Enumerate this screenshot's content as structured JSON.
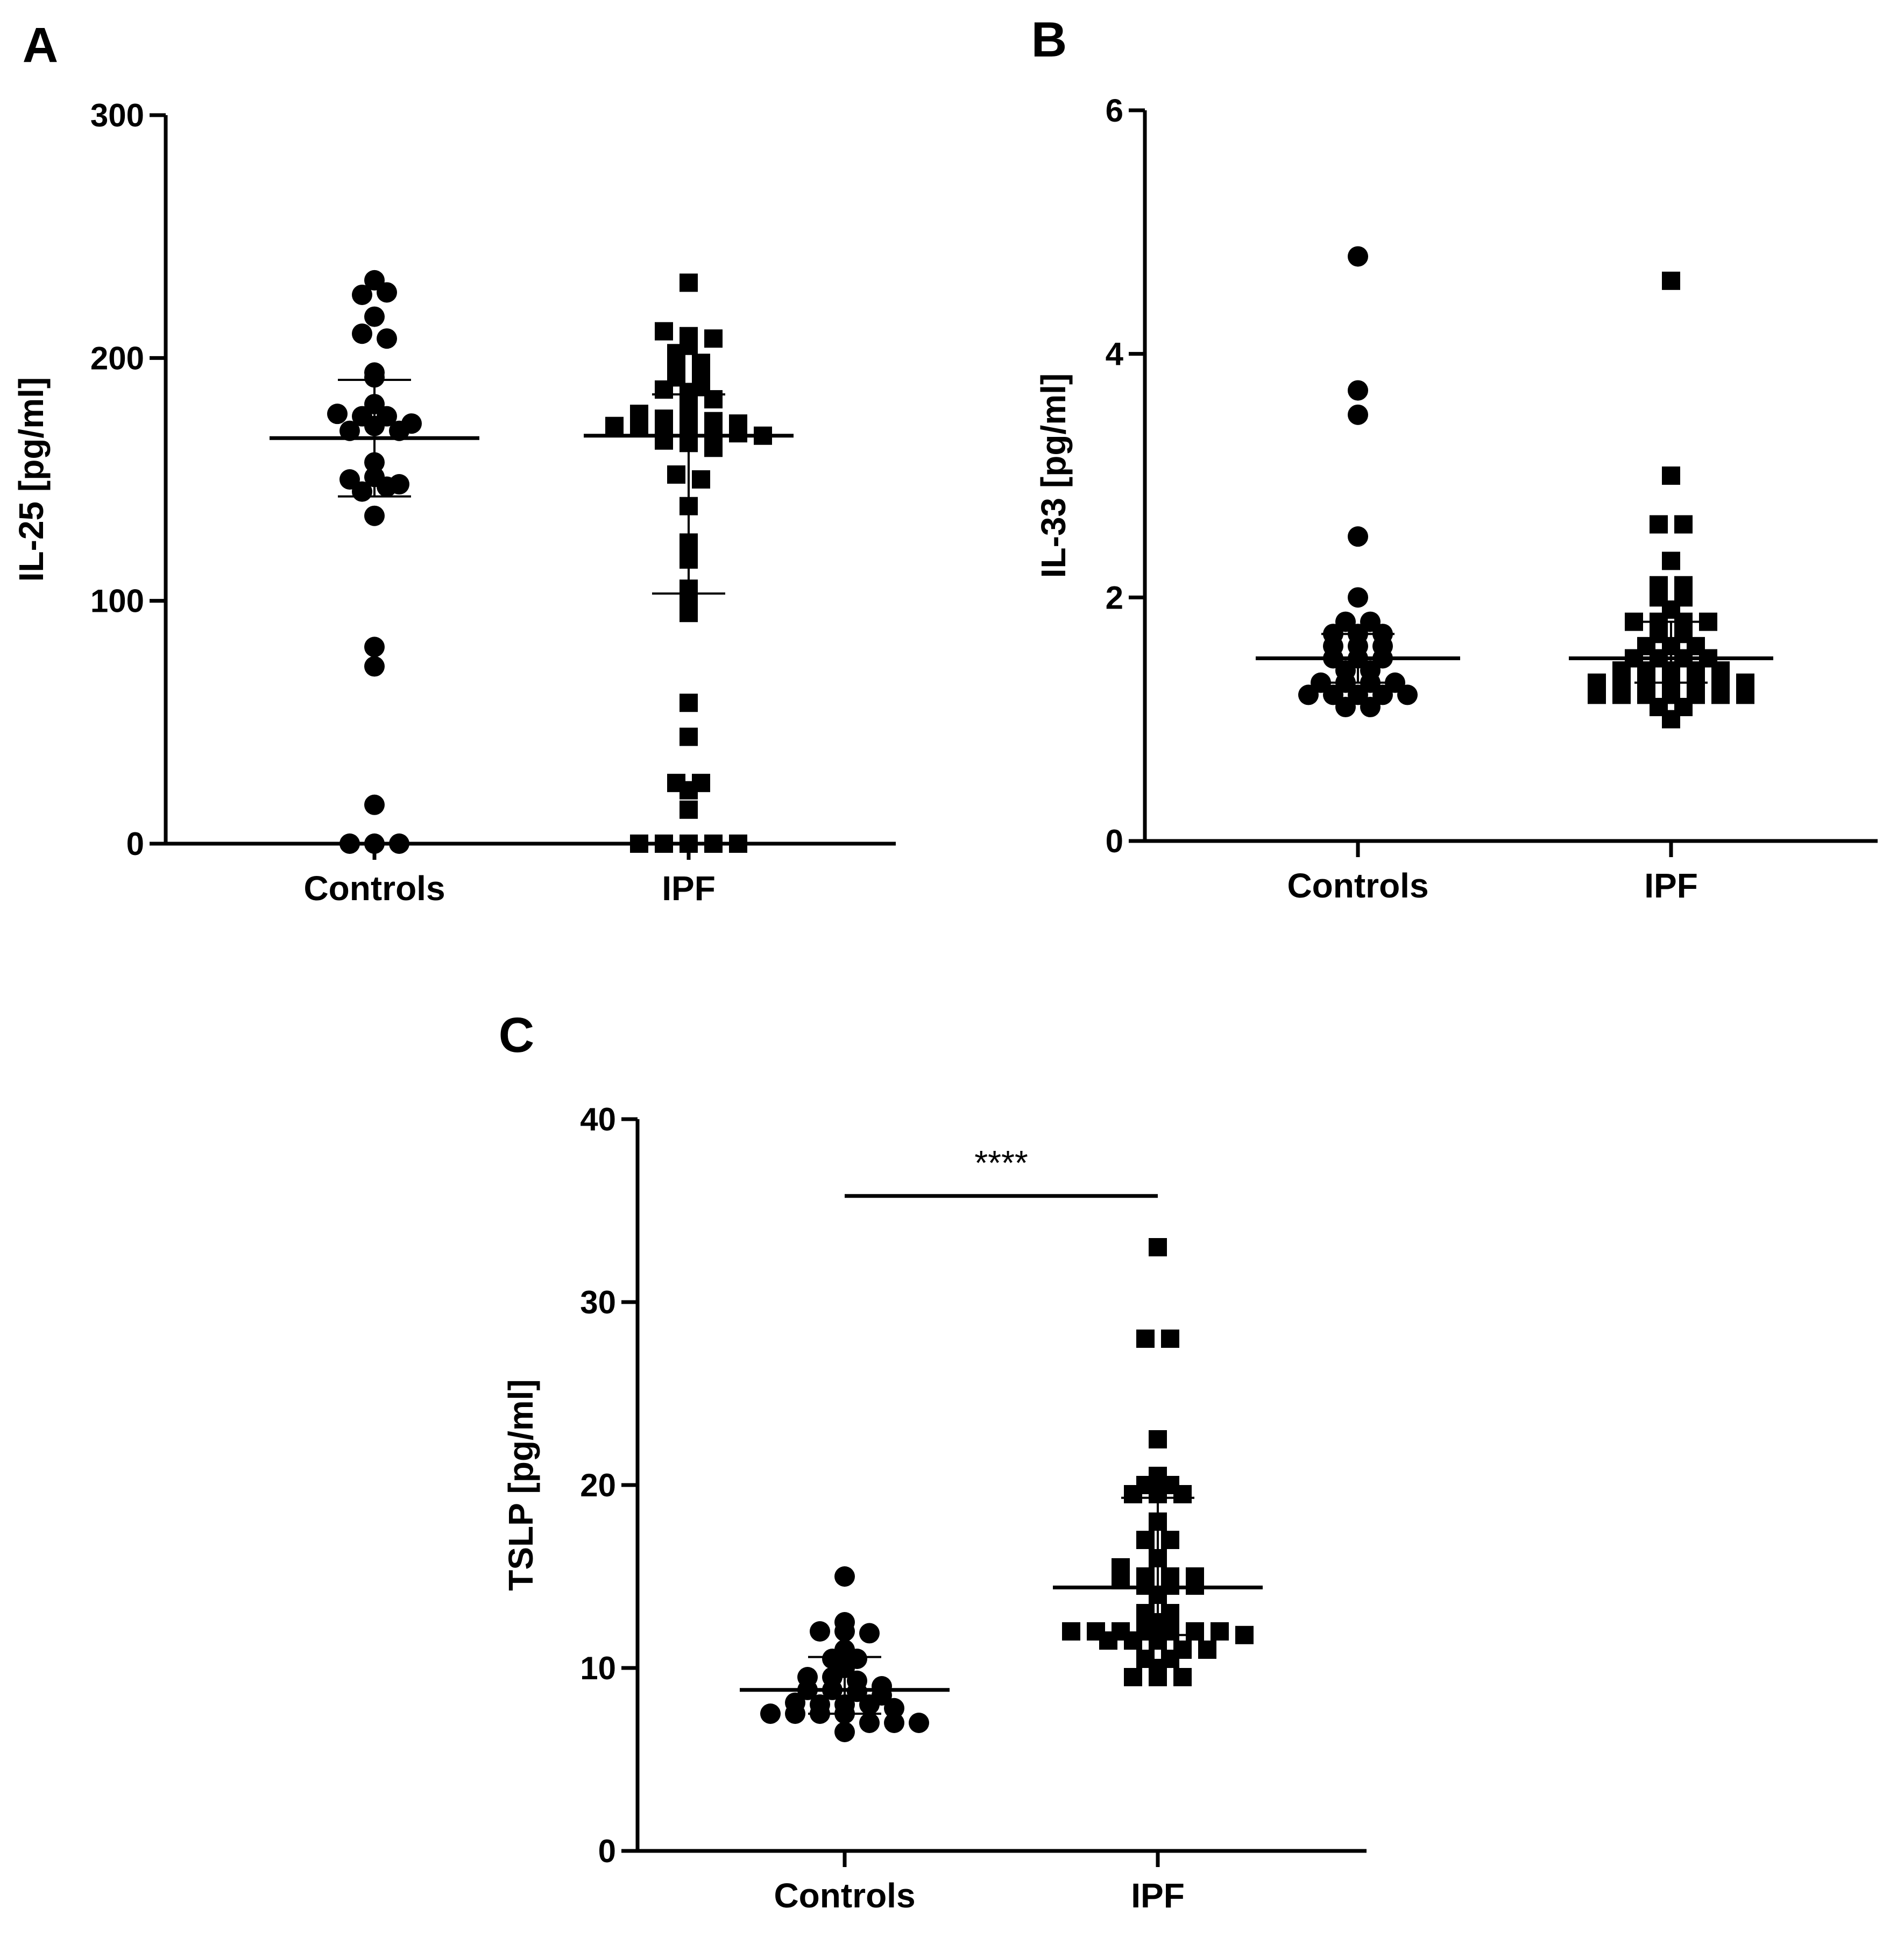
{
  "colors": {
    "ink": "#000000",
    "background": "#ffffff"
  },
  "chart_data": [
    {
      "panel": "A",
      "type": "scatter",
      "ylabel": "IL-25 [pg/ml]",
      "ylim": [
        0,
        300
      ],
      "yticks": [
        "0",
        "100",
        "200",
        "300"
      ],
      "categories": [
        "Controls",
        "IPF"
      ],
      "groups": [
        {
          "name": "Controls",
          "marker": "circle",
          "values": [
            232,
            226,
            227,
            210,
            217,
            208,
            192,
            194,
            181,
            177,
            176,
            176,
            170,
            172,
            170,
            173,
            157,
            150,
            151,
            148,
            145,
            147,
            135,
            81,
            73,
            16,
            0,
            0,
            0
          ],
          "mean": 167,
          "sd_low": 143,
          "sd_high": 191
        },
        {
          "name": "IPF",
          "marker": "square",
          "values": [
            231,
            211,
            209,
            208,
            205,
            202,
            198,
            195,
            193,
            192,
            188,
            187,
            186,
            183,
            180,
            177,
            175,
            174,
            174,
            173,
            172,
            172,
            171,
            170,
            170,
            169,
            168,
            166,
            165,
            163,
            152,
            150,
            139,
            124,
            119,
            117,
            105,
            100,
            95,
            58,
            44,
            25,
            25,
            22,
            14,
            0,
            0,
            0,
            0,
            0
          ],
          "mean": 168,
          "sd_low": 103,
          "sd_high": 185
        }
      ]
    },
    {
      "panel": "B",
      "type": "scatter",
      "ylabel": "IL-33 [pg/ml]",
      "ylim": [
        0,
        6
      ],
      "yticks": [
        "0",
        "2",
        "4",
        "6"
      ],
      "categories": [
        "Controls",
        "IPF"
      ],
      "groups": [
        {
          "name": "Controls",
          "marker": "circle",
          "values": [
            4.8,
            3.7,
            3.5,
            2.5,
            2.0,
            1.8,
            1.8,
            1.7,
            1.7,
            1.7,
            1.6,
            1.6,
            1.6,
            1.5,
            1.5,
            1.5,
            1.4,
            1.4,
            1.3,
            1.3,
            1.3,
            1.3,
            1.2,
            1.2,
            1.2,
            1.2,
            1.2,
            1.1,
            1.1
          ],
          "mean": 1.5,
          "sd_low": 1.3,
          "sd_high": 1.7
        },
        {
          "name": "IPF",
          "marker": "square",
          "values": [
            4.6,
            3.0,
            2.6,
            2.6,
            2.3,
            2.1,
            2.1,
            2.0,
            2.0,
            1.9,
            1.8,
            1.8,
            1.8,
            1.8,
            1.7,
            1.7,
            1.6,
            1.6,
            1.6,
            1.5,
            1.5,
            1.5,
            1.5,
            1.4,
            1.4,
            1.4,
            1.4,
            1.4,
            1.3,
            1.3,
            1.3,
            1.3,
            1.3,
            1.3,
            1.3,
            1.2,
            1.2,
            1.2,
            1.2,
            1.2,
            1.2,
            1.2,
            1.1,
            1.1,
            1.0
          ],
          "mean": 1.5,
          "sd_low": 1.3,
          "sd_high": 1.8
        }
      ]
    },
    {
      "panel": "C",
      "type": "scatter",
      "ylabel": "TSLP [pg/ml]",
      "ylim": [
        0,
        40
      ],
      "yticks": [
        "0",
        "10",
        "20",
        "30",
        "40"
      ],
      "categories": [
        "Controls",
        "IPF"
      ],
      "significance": {
        "label": "****",
        "y": 35.8
      },
      "groups": [
        {
          "name": "Controls",
          "marker": "circle",
          "values": [
            15.0,
            12.5,
            12.0,
            12.0,
            11.9,
            11.0,
            10.5,
            10.5,
            10.0,
            9.5,
            9.5,
            9.3,
            9.0,
            8.8,
            8.8,
            8.7,
            8.5,
            8.1,
            8.0,
            8.0,
            8.0,
            7.8,
            7.5,
            7.5,
            7.5,
            7.5,
            7.0,
            7.0,
            7.0,
            6.5
          ],
          "mean": 8.8,
          "sd_low": 7.5,
          "sd_high": 10.6
        },
        {
          "name": "IPF",
          "marker": "square",
          "values": [
            33.0,
            28.0,
            28.0,
            22.5,
            20.5,
            20.0,
            20.0,
            19.5,
            19.5,
            19.5,
            18.0,
            17.0,
            17.0,
            16.0,
            15.5,
            15.0,
            15.0,
            15.0,
            14.8,
            14.5,
            14.5,
            14.5,
            14.0,
            13.0,
            13.0,
            12.5,
            12.0,
            12.0,
            12.0,
            12.0,
            12.0,
            12.0,
            12.0,
            11.8,
            11.5,
            11.5,
            11.5,
            11.0,
            11.0,
            10.5,
            10.5,
            10.0,
            9.5,
            9.5,
            9.5
          ],
          "mean": 14.4,
          "sd_low": 11.8,
          "sd_high": 19.3
        }
      ]
    }
  ]
}
